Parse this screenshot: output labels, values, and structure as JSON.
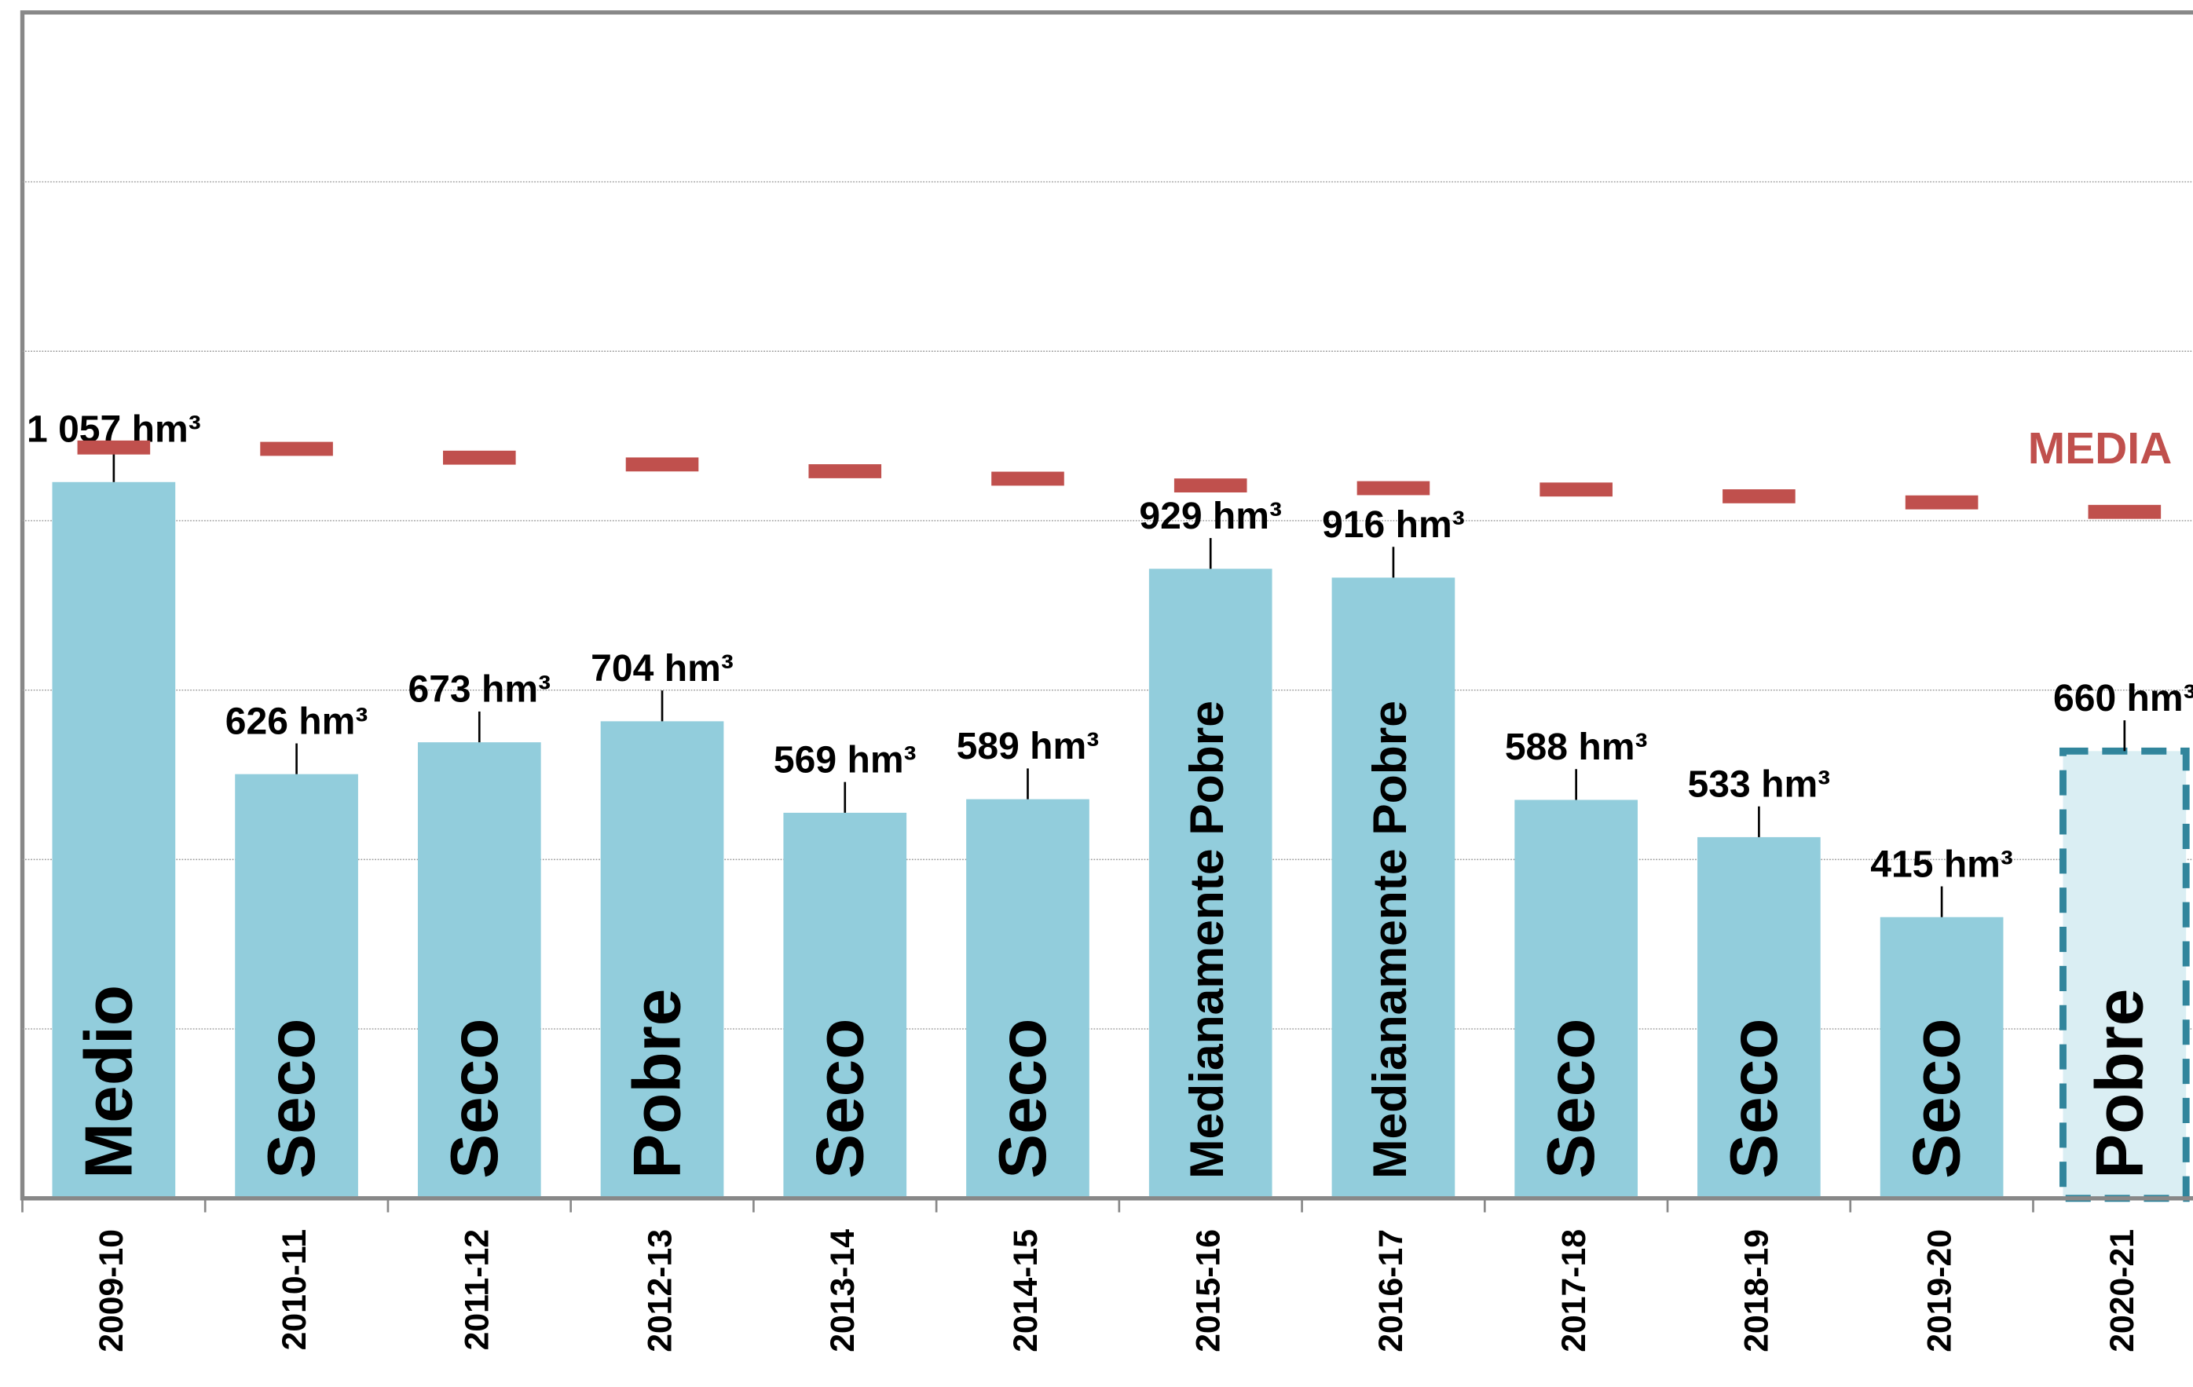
{
  "chart_data": {
    "type": "bar",
    "categories": [
      "2009-10",
      "2010-11",
      "2011-12",
      "2012-13",
      "2013-14",
      "2014-15",
      "2015-16",
      "2016-17",
      "2017-18",
      "2018-19",
      "2019-20",
      "2020-21"
    ],
    "values": [
      1057,
      626,
      673,
      704,
      569,
      589,
      929,
      916,
      588,
      533,
      415,
      660
    ],
    "value_labels": [
      "1 057 hm³",
      "626 hm³",
      "673 hm³",
      "704 hm³",
      "569 hm³",
      "589 hm³",
      "929 hm³",
      "916 hm³",
      "588 hm³",
      "533 hm³",
      "415 hm³",
      "660 hm³"
    ],
    "bar_labels": [
      "Medio",
      "Seco",
      "Seco",
      "Pobre",
      "Seco",
      "Seco",
      "Medianamente Pobre",
      "Medianamente Pobre",
      "Seco",
      "Seco",
      "Seco",
      "Pobre"
    ],
    "color": "#92cddc",
    "media": {
      "name": "MEDIA",
      "color": "#c0504d",
      "values": [
        1108,
        1106,
        1093,
        1083,
        1073,
        1062,
        1052,
        1048,
        1046,
        1036,
        1027,
        1013
      ]
    },
    "ylim": [
      0,
      1750
    ],
    "yticks": [
      0,
      250,
      500,
      750,
      1000,
      1250,
      1500
    ],
    "grid": true
  }
}
